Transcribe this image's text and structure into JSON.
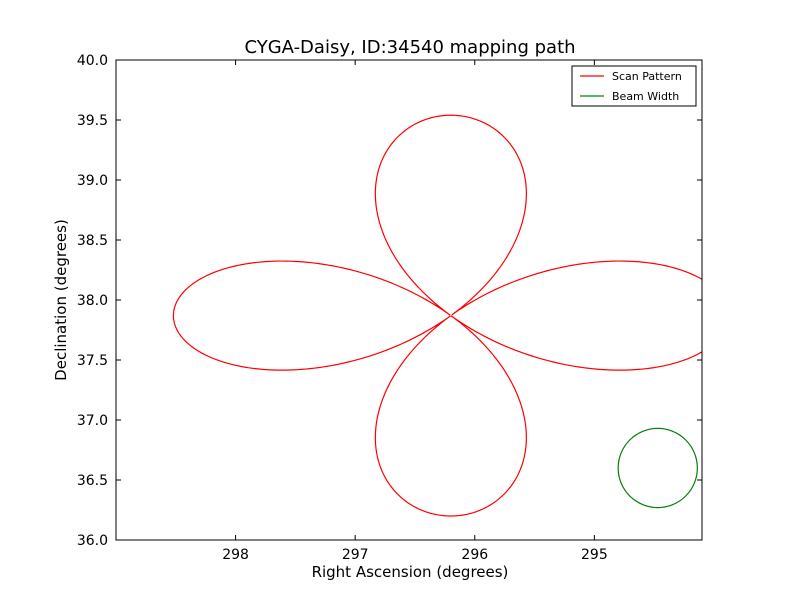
{
  "chart_data": {
    "type": "line",
    "title": "CYGA-Daisy, ID:34540 mapping path",
    "xlabel": "Right Ascension (degrees)",
    "ylabel": "Declination (degrees)",
    "xlim": [
      299.0,
      294.1
    ],
    "ylim": [
      36.0,
      40.0
    ],
    "x_reversed": true,
    "x_ticks": [
      298,
      297,
      296,
      295
    ],
    "x_tick_labels": [
      "298",
      "297",
      "296",
      "295"
    ],
    "y_ticks": [
      36.0,
      36.5,
      37.0,
      37.5,
      38.0,
      38.5,
      39.0,
      39.5,
      40.0
    ],
    "y_tick_labels": [
      "36.0",
      "36.5",
      "37.0",
      "37.5",
      "38.0",
      "38.5",
      "39.0",
      "39.5",
      "40.0"
    ],
    "grid": false,
    "legend_position": "top-right",
    "series": [
      {
        "name": "Scan Pattern",
        "color": "#ff0000",
        "shape": "four-petal daisy",
        "center": [
          296.2,
          37.87
        ],
        "ra_half_extent": 2.32,
        "dec_half_extent": 1.67
      },
      {
        "name": "Beam Width",
        "color": "#008000",
        "shape": "circle",
        "center": [
          294.47,
          36.6
        ],
        "dec_radius": 0.33
      }
    ]
  }
}
